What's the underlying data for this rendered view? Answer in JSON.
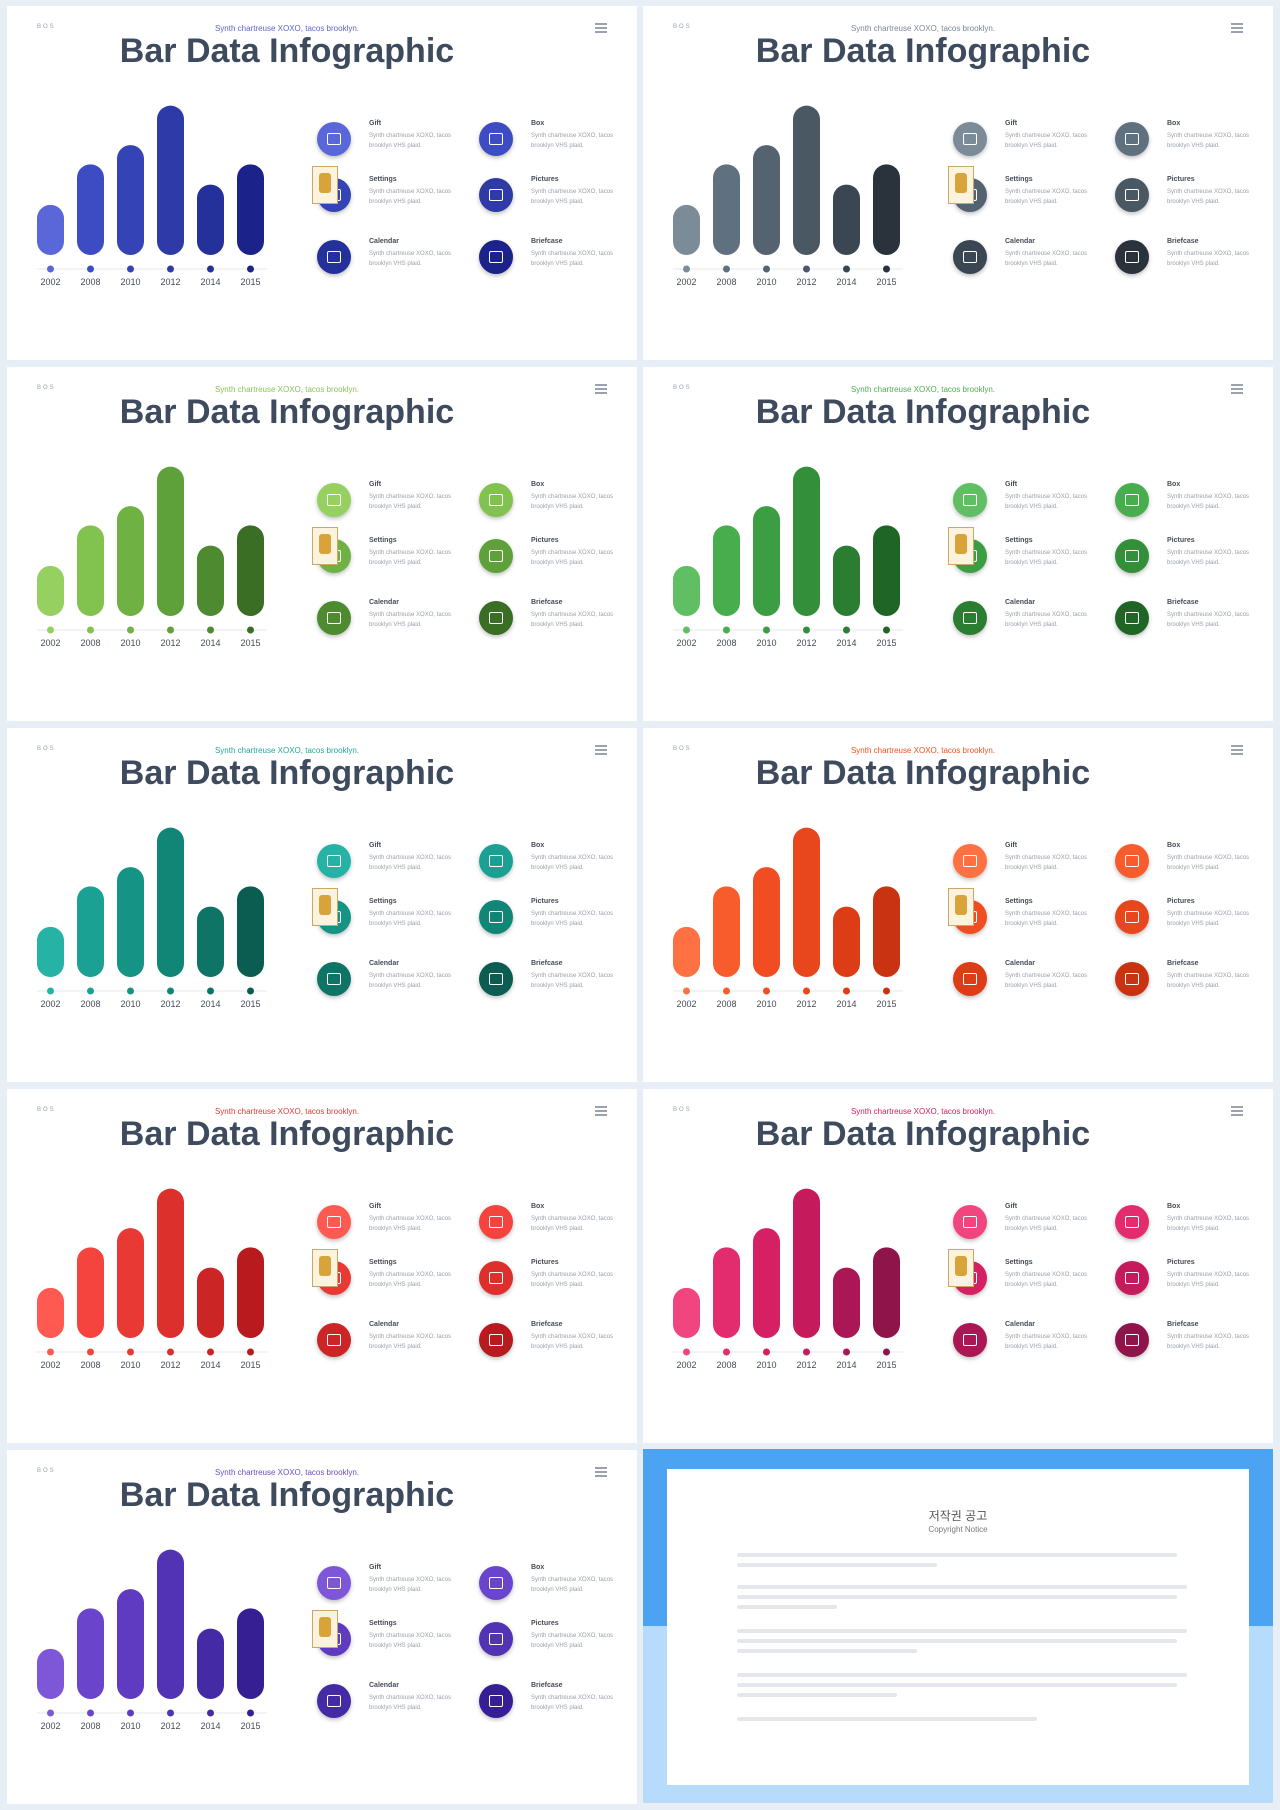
{
  "slide_common": {
    "corner": "BOS",
    "subtitle": "Synth chartreuse XOXO, tacos brooklyn.",
    "title": "Bar Data Infographic",
    "item_desc": "Synth chartreuse XOXO, tacos brooklyn VHS plaid.",
    "items": [
      {
        "label": "Gift",
        "icon": "gift-icon"
      },
      {
        "label": "Box",
        "icon": "box-icon"
      },
      {
        "label": "Settings",
        "icon": "settings-icon"
      },
      {
        "label": "Pictures",
        "icon": "pictures-icon"
      },
      {
        "label": "Calendar",
        "icon": "calendar-icon"
      },
      {
        "label": "Briefcase",
        "icon": "briefcase-icon"
      }
    ]
  },
  "chart_data": {
    "type": "bar",
    "categories": [
      "2002",
      "2008",
      "2010",
      "2012",
      "2014",
      "2015"
    ],
    "values": [
      47,
      85,
      103,
      140,
      66,
      85
    ],
    "ylim": [
      0,
      150
    ]
  },
  "themes": [
    {
      "subtitle_color": "#5b66c9",
      "colors": [
        "#5a67d8",
        "#3e4cc3",
        "#3443b6",
        "#2d3aa8",
        "#25319a",
        "#1b238a"
      ]
    },
    {
      "subtitle_color": "#7b8794",
      "colors": [
        "#7b8b98",
        "#5f707e",
        "#556371",
        "#4a5864",
        "#3a4651",
        "#2a333c"
      ]
    },
    {
      "subtitle_color": "#8cc456",
      "colors": [
        "#95d060",
        "#82c24e",
        "#6fb142",
        "#5ea03a",
        "#4d8a30",
        "#3a6e24"
      ]
    },
    {
      "subtitle_color": "#4caf50",
      "colors": [
        "#5fbf62",
        "#48ad4d",
        "#3c9e42",
        "#338f39",
        "#2a7d31",
        "#1e6526"
      ]
    },
    {
      "subtitle_color": "#26a69a",
      "colors": [
        "#26b3a5",
        "#1aa193",
        "#159384",
        "#118576",
        "#0e7566",
        "#0a5d50"
      ]
    },
    {
      "subtitle_color": "#f4511e",
      "colors": [
        "#ff7043",
        "#f85c2d",
        "#f04e22",
        "#e8461c",
        "#dc3c16",
        "#c93312"
      ]
    },
    {
      "subtitle_color": "#e53935",
      "colors": [
        "#ff5a52",
        "#f5433d",
        "#e83934",
        "#dc302d",
        "#cc2525",
        "#b81a1e"
      ]
    },
    {
      "subtitle_color": "#d81b60",
      "colors": [
        "#f0457f",
        "#e32c6d",
        "#d52063",
        "#c51a5c",
        "#ab1754",
        "#8e1449"
      ]
    },
    {
      "subtitle_color": "#6a4cc9",
      "colors": [
        "#7e57d8",
        "#6a45cc",
        "#5e3bc1",
        "#5233b4",
        "#452aa6",
        "#361f93"
      ]
    }
  ],
  "notice": {
    "title": "저작권 공고",
    "subtitle": "Copyright Notice"
  }
}
